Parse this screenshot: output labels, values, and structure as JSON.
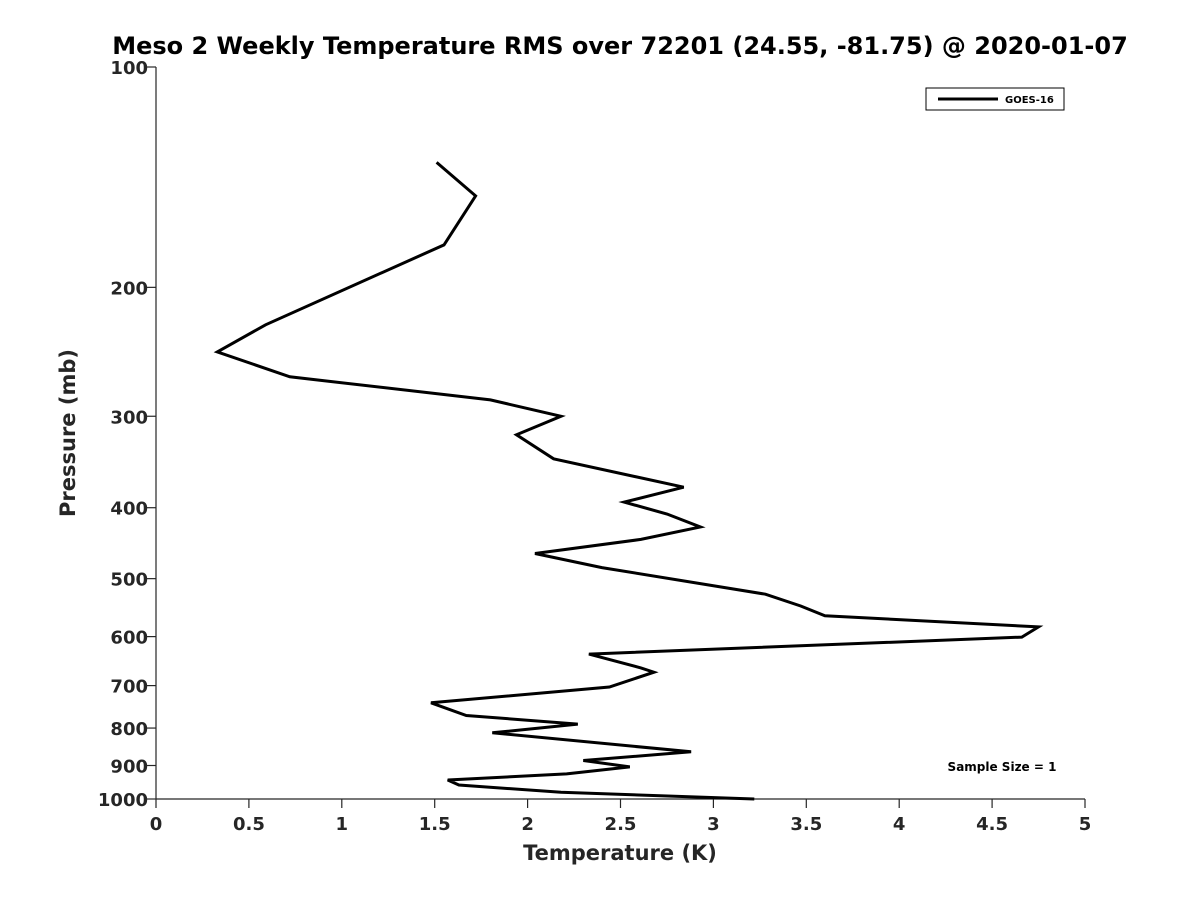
{
  "chart_data": {
    "type": "line",
    "title": "Meso 2 Weekly Temperature RMS over 72201 (24.55, -81.75) @ 2020-01-07",
    "xlabel": "Temperature (K)",
    "ylabel": "Pressure (mb)",
    "xlim": [
      0,
      5
    ],
    "ylim": [
      1000,
      100
    ],
    "y_scale": "log",
    "x_ticks": [
      "0",
      "0.5",
      "1",
      "1.5",
      "2",
      "2.5",
      "3",
      "3.5",
      "4",
      "4.5",
      "5"
    ],
    "y_ticks": [
      "100",
      "200",
      "300",
      "400",
      "500",
      "600",
      "700",
      "800",
      "900",
      "1000"
    ],
    "grid": false,
    "legend_position": "top-right",
    "annotation": "Sample Size = 1",
    "series": [
      {
        "name": "GOES-16",
        "color": "#000000",
        "x": [
          1.51,
          1.72,
          1.55,
          0.59,
          0.33,
          0.72,
          1.8,
          2.18,
          1.94,
          2.14,
          2.84,
          2.52,
          2.75,
          2.93,
          2.61,
          2.04,
          2.4,
          3.28,
          3.47,
          3.6,
          4.75,
          4.66,
          2.33,
          2.61,
          2.68,
          2.44,
          1.48,
          1.67,
          2.27,
          1.81,
          2.88,
          2.3,
          2.55,
          2.21,
          1.57,
          1.63,
          2.18,
          3.22
        ],
        "y": [
          135,
          150,
          175,
          225,
          245,
          265,
          285,
          300,
          318,
          343,
          375,
          393,
          408,
          425,
          442,
          462,
          483,
          525,
          545,
          562,
          582,
          601,
          634,
          662,
          671,
          703,
          739,
          769,
          790,
          812,
          862,
          886,
          904,
          924,
          942,
          957,
          979,
          1000
        ]
      }
    ]
  }
}
